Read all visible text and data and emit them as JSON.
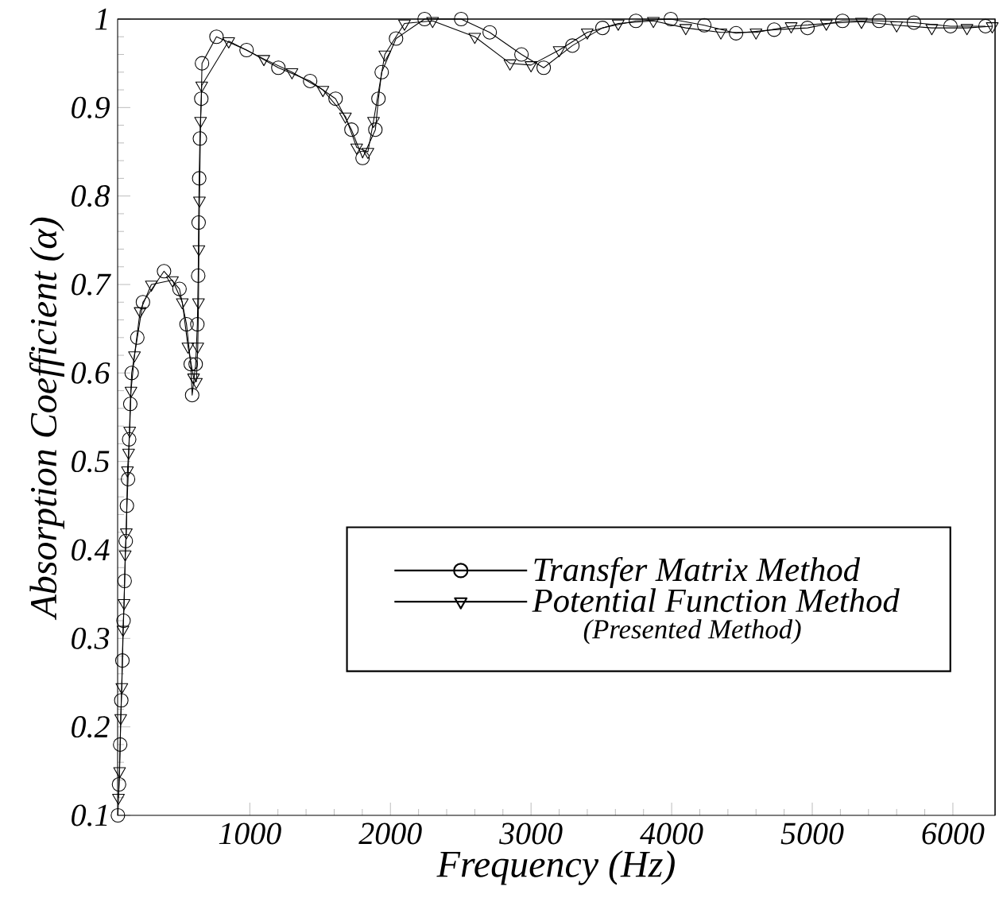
{
  "chart_data": {
    "type": "line",
    "xlabel": "Frequency (Hz)",
    "ylabel": "Absorption Coefficient (α)",
    "xlim": [
      60,
      6300
    ],
    "ylim": [
      0.1,
      1
    ],
    "xticks": [
      1000,
      2000,
      3000,
      4000,
      5000,
      6000
    ],
    "yticks": [
      0.1,
      0.2,
      0.3,
      0.4,
      0.5,
      0.6,
      0.7,
      0.8,
      0.9,
      1
    ],
    "legend": "bottom right",
    "grid": false,
    "line_style": "solid",
    "annotations": [
      "(Presented Method)"
    ],
    "series": [
      {
        "name": "Transfer Matrix Method",
        "color": "#000000",
        "marker": "circle",
        "x": [
          62,
          70,
          78,
          86,
          94,
          102,
          110,
          118,
          126,
          134,
          142,
          150,
          160,
          200,
          240,
          390,
          500,
          550,
          580,
          590,
          615,
          627,
          633,
          636,
          640,
          645,
          655,
          660,
          763,
          977,
          1203,
          1429,
          1610,
          1723,
          1802,
          1893,
          1915,
          1938,
          2040,
          2243,
          2503,
          2706,
          2932,
          3090,
          3294,
          3508,
          3746,
          3994,
          4232,
          4458,
          4729,
          4966,
          5215,
          5475,
          5723,
          5983,
          6232
        ],
        "values": [
          0.1,
          0.135,
          0.18,
          0.23,
          0.275,
          0.32,
          0.365,
          0.41,
          0.45,
          0.48,
          0.525,
          0.565,
          0.6,
          0.64,
          0.68,
          0.715,
          0.695,
          0.655,
          0.61,
          0.575,
          0.61,
          0.655,
          0.71,
          0.77,
          0.82,
          0.865,
          0.91,
          0.95,
          0.98,
          0.965,
          0.945,
          0.93,
          0.91,
          0.875,
          0.843,
          0.875,
          0.91,
          0.94,
          0.978,
          1.0,
          1.0,
          0.985,
          0.96,
          0.945,
          0.97,
          0.99,
          0.998,
          1.0,
          0.993,
          0.984,
          0.988,
          0.99,
          0.998,
          0.998,
          0.996,
          0.992,
          0.992
        ]
      },
      {
        "name": "Potential Function Method",
        "color": "#000000",
        "marker": "triangle",
        "x": [
          66,
          74,
          82,
          90,
          98,
          106,
          114,
          122,
          130,
          138,
          146,
          155,
          180,
          220,
          300,
          450,
          520,
          560,
          600,
          620,
          630,
          635,
          638,
          642,
          650,
          658,
          850,
          1100,
          1300,
          1520,
          1680,
          1760,
          1840,
          1880,
          1960,
          2100,
          2300,
          2600,
          2850,
          3000,
          3200,
          3400,
          3620,
          3870,
          4100,
          4350,
          4600,
          4850,
          5100,
          5350,
          5600,
          5850,
          6100,
          6280
        ],
        "values": [
          0.12,
          0.15,
          0.21,
          0.245,
          0.31,
          0.34,
          0.395,
          0.42,
          0.49,
          0.51,
          0.535,
          0.58,
          0.62,
          0.67,
          0.7,
          0.705,
          0.68,
          0.63,
          0.595,
          0.59,
          0.63,
          0.68,
          0.74,
          0.795,
          0.885,
          0.925,
          0.975,
          0.955,
          0.94,
          0.92,
          0.89,
          0.855,
          0.85,
          0.885,
          0.96,
          0.995,
          0.998,
          0.98,
          0.95,
          0.948,
          0.965,
          0.985,
          0.995,
          0.998,
          0.99,
          0.985,
          0.985,
          0.992,
          0.995,
          0.997,
          0.993,
          0.99,
          0.99,
          0.992
        ]
      }
    ]
  }
}
